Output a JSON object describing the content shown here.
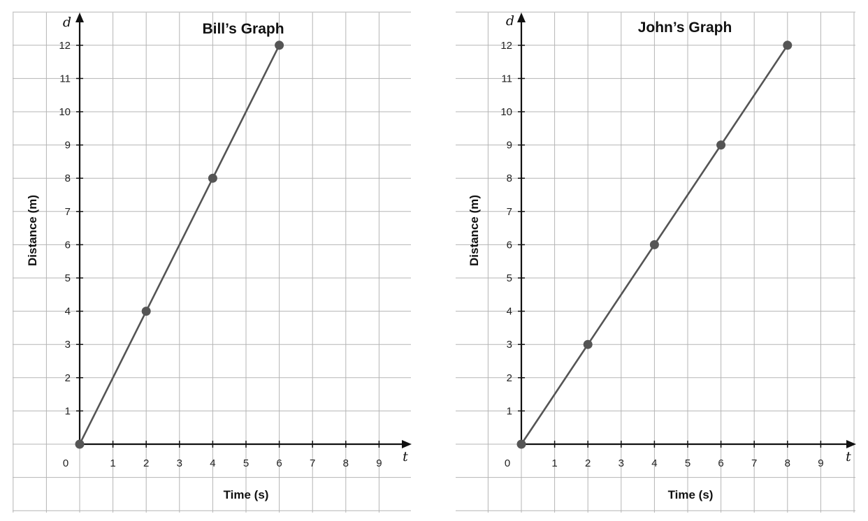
{
  "chart_data": [
    {
      "type": "line",
      "title": "Bill’s Graph",
      "xlabel": "Time (s)",
      "ylabel": "Distance (m)",
      "x_var": "t",
      "y_var": "d",
      "origin_label": "0",
      "xlim": [
        0,
        9
      ],
      "ylim": [
        0,
        12
      ],
      "x_ticks": [
        "1",
        "2",
        "3",
        "4",
        "5",
        "6",
        "7",
        "8",
        "9"
      ],
      "y_ticks": [
        "1",
        "2",
        "3",
        "4",
        "5",
        "6",
        "7",
        "8",
        "9",
        "10",
        "11",
        "12"
      ],
      "grid": true,
      "series": [
        {
          "points": [
            [
              0,
              0
            ],
            [
              2,
              4
            ],
            [
              4,
              8
            ],
            [
              6,
              12
            ]
          ],
          "color": "#555555"
        }
      ]
    },
    {
      "type": "line",
      "title": "John’s Graph",
      "xlabel": "Time (s)",
      "ylabel": "Distance (m)",
      "x_var": "t",
      "y_var": "d",
      "origin_label": "0",
      "xlim": [
        0,
        9
      ],
      "ylim": [
        0,
        12
      ],
      "x_ticks": [
        "1",
        "2",
        "3",
        "4",
        "5",
        "6",
        "7",
        "8",
        "9"
      ],
      "y_ticks": [
        "1",
        "2",
        "3",
        "4",
        "5",
        "6",
        "7",
        "8",
        "9",
        "10",
        "11",
        "12"
      ],
      "grid": true,
      "series": [
        {
          "points": [
            [
              0,
              0
            ],
            [
              2,
              3
            ],
            [
              4,
              6
            ],
            [
              6,
              9
            ],
            [
              8,
              12
            ]
          ],
          "color": "#555555"
        }
      ]
    }
  ]
}
